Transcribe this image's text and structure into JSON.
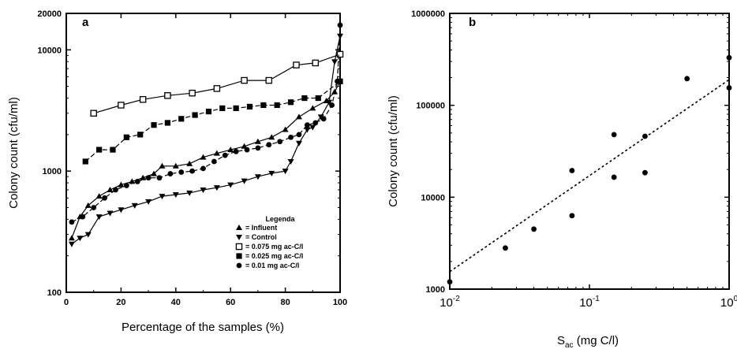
{
  "chart_data": [
    {
      "panel": "a",
      "type": "line",
      "xlabel": "Percentage of the samples (%)",
      "ylabel": "Colony count (cfu/ml)",
      "xlim": [
        0,
        100
      ],
      "ylim": [
        100,
        20000
      ],
      "yscale": "log",
      "xticks": [
        "0",
        "20",
        "40",
        "60",
        "80",
        "100"
      ],
      "yticks": [
        "100",
        "1000",
        "10000",
        "20000"
      ],
      "legend_title": "Legenda",
      "legend_placement": "bottom-right",
      "series": [
        {
          "name": "Influent",
          "marker": "triangle-up",
          "dash": "solid",
          "x": [
            2,
            5,
            8,
            12,
            16,
            20,
            24,
            28,
            32,
            35,
            40,
            45,
            50,
            55,
            60,
            65,
            70,
            75,
            80,
            85,
            90,
            95,
            98,
            100
          ],
          "y": [
            280,
            420,
            520,
            620,
            700,
            770,
            820,
            880,
            950,
            1100,
            1100,
            1150,
            1300,
            1400,
            1500,
            1600,
            1750,
            1900,
            2200,
            2800,
            3300,
            3800,
            4500,
            5500
          ]
        },
        {
          "name": "Control",
          "marker": "triangle-down",
          "dash": "solid",
          "x": [
            2,
            5,
            8,
            12,
            16,
            20,
            25,
            30,
            35,
            40,
            45,
            50,
            55,
            60,
            65,
            70,
            75,
            80,
            82,
            85,
            88,
            90,
            93,
            96,
            98,
            100
          ],
          "y": [
            250,
            280,
            300,
            420,
            450,
            480,
            520,
            560,
            620,
            640,
            660,
            700,
            730,
            770,
            830,
            900,
            960,
            1000,
            1200,
            1700,
            2200,
            2300,
            2800,
            3700,
            8000,
            13000
          ]
        },
        {
          "name": "0.075 mg ac-C/l",
          "marker": "square-open",
          "dash": "solid",
          "x": [
            10,
            20,
            28,
            37,
            46,
            55,
            65,
            74,
            84,
            91,
            100
          ],
          "y": [
            3000,
            3500,
            3900,
            4200,
            4400,
            4800,
            5600,
            5600,
            7500,
            7800,
            9200
          ]
        },
        {
          "name": "0.025 mg ac-C/l",
          "marker": "square",
          "dash": "dashed",
          "x": [
            7,
            12,
            17,
            22,
            27,
            32,
            37,
            42,
            47,
            52,
            57,
            62,
            67,
            72,
            77,
            82,
            87,
            92,
            100
          ],
          "y": [
            1200,
            1500,
            1500,
            1900,
            2000,
            2400,
            2500,
            2700,
            2900,
            3100,
            3300,
            3300,
            3400,
            3500,
            3500,
            3700,
            4000,
            4000,
            5500
          ]
        },
        {
          "name": "0.01 mg ac-C/l",
          "marker": "circle",
          "dash": "dashed",
          "x": [
            2,
            6,
            10,
            14,
            18,
            22,
            26,
            30,
            34,
            38,
            42,
            46,
            50,
            54,
            58,
            62,
            66,
            70,
            74,
            78,
            82,
            85,
            88,
            91,
            94,
            97,
            99,
            100
          ],
          "y": [
            380,
            420,
            500,
            600,
            700,
            760,
            820,
            880,
            880,
            950,
            980,
            1000,
            1050,
            1200,
            1350,
            1450,
            1500,
            1550,
            1650,
            1750,
            1900,
            2000,
            2400,
            2500,
            2700,
            3500,
            5500,
            16000
          ]
        }
      ]
    },
    {
      "panel": "b",
      "type": "scatter",
      "xlabel": "S",
      "xlabel_sub": "ac",
      "xlabel_rest": " (mg C/l)",
      "ylabel": "Colony count (cfu/ml)",
      "xlim": [
        0.01,
        1
      ],
      "ylim": [
        1000,
        1000000
      ],
      "xscale": "log",
      "yscale": "log",
      "xticks": [
        {
          "base": "10",
          "exp": "-2"
        },
        {
          "base": "10",
          "exp": "-1"
        },
        {
          "base": "10",
          "exp": "0"
        }
      ],
      "yticks": [
        "1000",
        "10000",
        "100000",
        "1000000"
      ],
      "points": {
        "x": [
          0.01,
          0.025,
          0.04,
          0.075,
          0.075,
          0.15,
          0.15,
          0.25,
          0.25,
          0.5,
          1.0,
          1.0
        ],
        "y": [
          1200,
          2800,
          4500,
          6300,
          19500,
          16500,
          48000,
          18500,
          46000,
          195000,
          155000,
          330000
        ]
      },
      "fit_line": {
        "dash": "dotted",
        "x": [
          0.01,
          1.0
        ],
        "y": [
          1550,
          190000
        ]
      }
    }
  ]
}
